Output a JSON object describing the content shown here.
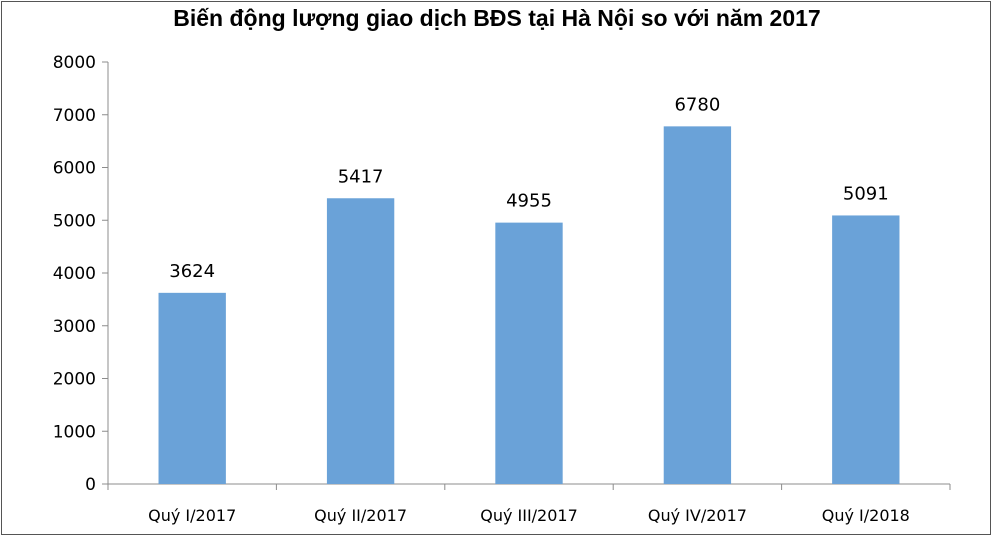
{
  "chart_data": {
    "type": "bar",
    "title": "Biến động lượng giao dịch BĐS tại Hà Nội so với năm 2017",
    "xlabel": "",
    "ylabel": "",
    "categories": [
      "Quý I/2017",
      "Quý II/2017",
      "Quý III/2017",
      "Quý IV/2017",
      "Quý I/2018"
    ],
    "values": [
      3624,
      5417,
      4955,
      6780,
      5091
    ],
    "ylim": [
      0,
      8000
    ],
    "yticks": [
      0,
      1000,
      2000,
      3000,
      4000,
      5000,
      6000,
      7000,
      8000
    ],
    "data_labels": true,
    "grid": false,
    "legend": "none",
    "bar_color": "#6aa2d8"
  }
}
